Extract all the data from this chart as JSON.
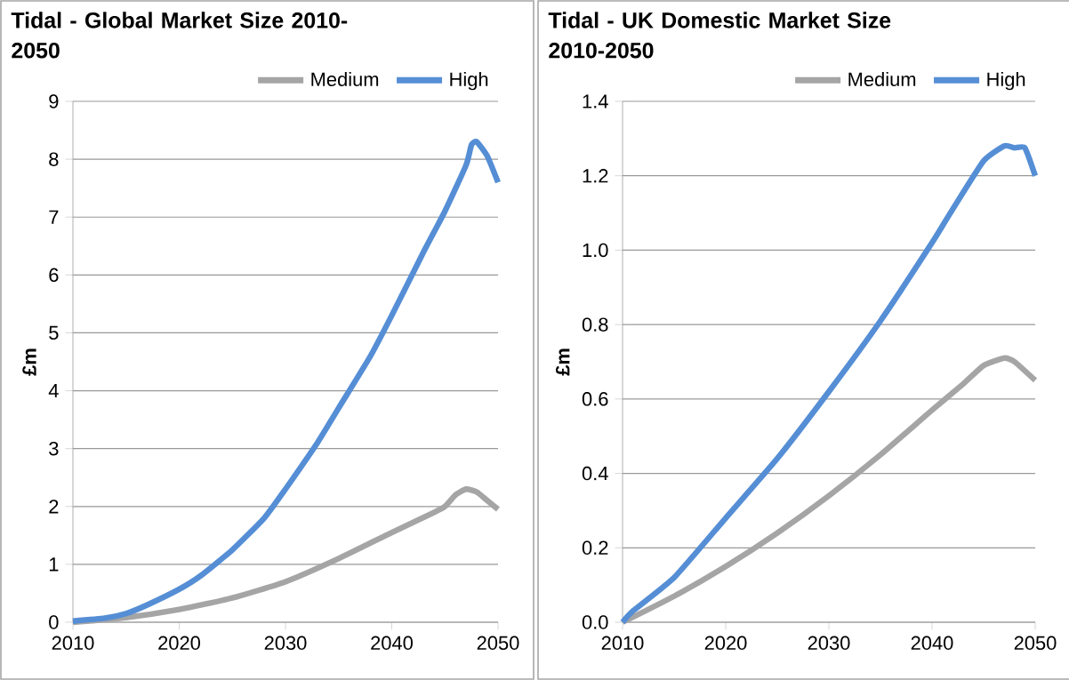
{
  "chart_data": [
    {
      "type": "line",
      "title": "Tidal - Global Market Size 2010-2050",
      "ylabel": "£m",
      "x": [
        2010,
        2013,
        2015,
        2017,
        2020,
        2022,
        2025,
        2028,
        2030,
        2033,
        2035,
        2038,
        2040,
        2043,
        2045,
        2047,
        2047.5,
        2048,
        2049,
        2050
      ],
      "series": [
        {
          "name": "Medium",
          "color": "#a5a5a5",
          "x": [
            2010,
            2015,
            2020,
            2025,
            2030,
            2035,
            2040,
            2044,
            2045,
            2046,
            2047,
            2048,
            2049,
            2050
          ],
          "values": [
            0.0,
            0.08,
            0.22,
            0.42,
            0.7,
            1.1,
            1.55,
            1.9,
            2.0,
            2.2,
            2.3,
            2.25,
            2.1,
            1.95
          ]
        },
        {
          "name": "High",
          "color": "#558ed5",
          "values": [
            0.02,
            0.07,
            0.15,
            0.3,
            0.57,
            0.8,
            1.25,
            1.8,
            2.3,
            3.1,
            3.7,
            4.6,
            5.3,
            6.4,
            7.1,
            7.9,
            8.25,
            8.3,
            8.05,
            7.6
          ]
        }
      ],
      "xlim": [
        2010,
        2050
      ],
      "xticks": [
        2010,
        2020,
        2030,
        2040,
        2050
      ],
      "ylim": [
        0,
        9
      ],
      "yticks": [
        0,
        1,
        2,
        3,
        4,
        5,
        6,
        7,
        8,
        9
      ],
      "grid": "y",
      "legend": "top",
      "marker": "none",
      "line_style": "solid"
    },
    {
      "type": "line",
      "title": "Tidal - UK Domestic Market Size 2010-2050",
      "ylabel": "£m",
      "x": [
        2010,
        2011,
        2015,
        2020,
        2025,
        2030,
        2035,
        2040,
        2042,
        2045,
        2047,
        2048,
        2049,
        2050
      ],
      "series": [
        {
          "name": "Medium",
          "color": "#a5a5a5",
          "x": [
            2010,
            2015,
            2020,
            2025,
            2030,
            2035,
            2040,
            2043,
            2045,
            2047,
            2048,
            2050
          ],
          "values": [
            0.0,
            0.07,
            0.15,
            0.24,
            0.34,
            0.45,
            0.57,
            0.64,
            0.69,
            0.71,
            0.7,
            0.65
          ]
        },
        {
          "name": "High",
          "color": "#558ed5",
          "values": [
            0.0,
            0.03,
            0.12,
            0.28,
            0.44,
            0.62,
            0.81,
            1.02,
            1.11,
            1.24,
            1.28,
            1.275,
            1.275,
            1.2
          ]
        }
      ],
      "xlim": [
        2010,
        2050
      ],
      "xticks": [
        2010,
        2020,
        2030,
        2040,
        2050
      ],
      "ylim": [
        0,
        1.4
      ],
      "yticks": [
        {
          "value": 0,
          "label": "0.0"
        },
        {
          "value": 0.2,
          "label": "0.2"
        },
        {
          "value": 0.4,
          "label": "0.4"
        },
        {
          "value": 0.6,
          "label": "0.6"
        },
        {
          "value": 0.8,
          "label": "0.8"
        },
        {
          "value": 1.0,
          "label": "1.0"
        },
        {
          "value": 1.2,
          "label": "1.2"
        },
        {
          "value": 1.4,
          "label": "1.4"
        }
      ],
      "grid": "y",
      "legend": "top",
      "marker": "none",
      "line_style": "solid"
    }
  ]
}
